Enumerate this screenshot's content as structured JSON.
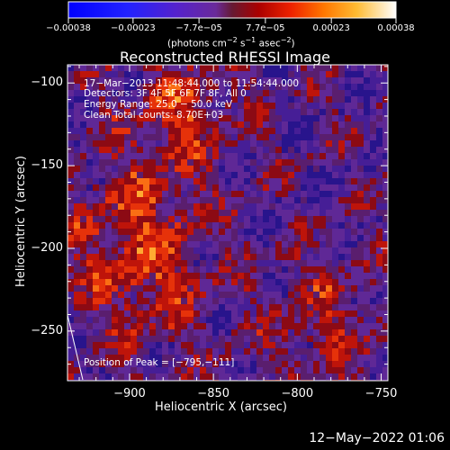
{
  "chart_data": {
    "type": "heatmap",
    "title": "Reconstructed RHESSI Image",
    "xlabel": "Heliocentric X (arcsec)",
    "ylabel": "Heliocentric Y (arcsec)",
    "xlim": [
      -937,
      -746
    ],
    "ylim": [
      -280,
      -89
    ],
    "xticks": [
      -900,
      -850,
      -800,
      -750
    ],
    "xtick_labels": [
      "−900",
      "−850",
      "−800",
      "−750"
    ],
    "yticks": [
      -100,
      -150,
      -200,
      -250
    ],
    "ytick_labels": [
      "−100",
      "−150",
      "−200",
      "−250"
    ],
    "colorbar": {
      "min": -0.00038,
      "max": 0.00038,
      "tick_values": [
        -0.00038,
        -0.00023,
        -7.7e-05,
        7.7e-05,
        0.00023,
        0.00038
      ],
      "tick_labels": [
        "−0.00038",
        "−0.00023",
        "−7.7e−05",
        "7.7e−05",
        "0.00023",
        "0.00038"
      ],
      "unit_label": "(photons cm",
      "unit_exp1": "−2",
      "unit_mid": " s",
      "unit_exp2": "−1",
      "unit_mid2": " asec",
      "unit_exp3": "−2",
      "unit_end": ")"
    },
    "annotations": {
      "time_range": "17−Mar−2013 11:48:44.000 to 11:54:44.000",
      "detectors": "Detectors: 3F 4F 5F 6F 7F 8F, All 0",
      "energy_range": "Energy Range: 25.0 − 50.0 keV",
      "clean": "Clean     Total counts: 8.70E+03",
      "peak": "Position of Peak = [−795,−111]"
    },
    "peak": [
      -795,
      -111
    ],
    "grid": false
  },
  "footer": {
    "date": "12−May−2022 01:06"
  }
}
